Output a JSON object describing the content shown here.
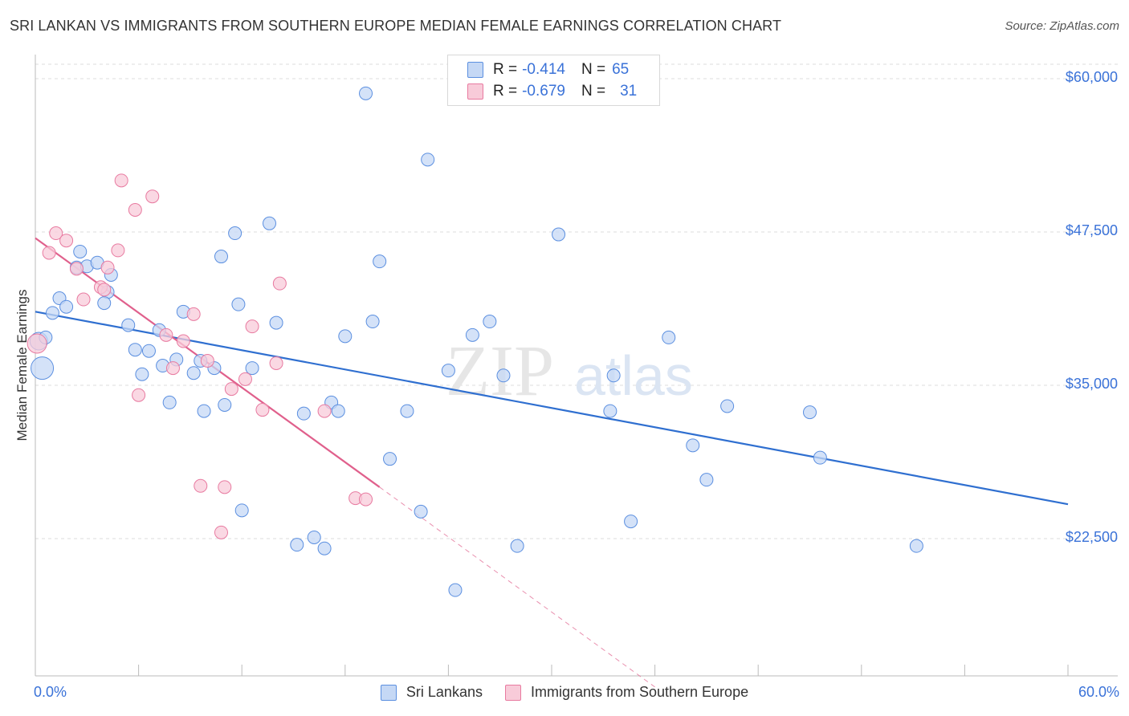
{
  "header": {
    "title": "SRI LANKAN VS IMMIGRANTS FROM SOUTHERN EUROPE MEDIAN FEMALE EARNINGS CORRELATION CHART",
    "source": "Source: ZipAtlas.com"
  },
  "legend_top": {
    "rows": [
      {
        "r_label": "R =",
        "r_value": "-0.414",
        "n_label": "N =",
        "n_value": "65"
      },
      {
        "r_label": "R =",
        "r_value": "-0.679",
        "n_label": "N =",
        "n_value": "31"
      }
    ]
  },
  "legend_bottom": {
    "items": [
      "Sri Lankans",
      "Immigrants from Southern Europe"
    ]
  },
  "axis": {
    "ylabel": "Median Female Earnings",
    "x_min_label": "0.0%",
    "x_max_label": "60.0%",
    "y_ticks": [
      "$60,000",
      "$47,500",
      "$35,000",
      "$22,500"
    ]
  },
  "colors": {
    "blue": "#5b8fe0",
    "blue_fill": "#c5d8f5",
    "blue_line": "#2f6fd0",
    "pink": "#e87aa0",
    "pink_fill": "#f8cbd9",
    "pink_line": "#e0608c",
    "tick_text": "#3a72d8",
    "grid": "#dddddd"
  },
  "chart_data": {
    "type": "scatter",
    "xlim": [
      0,
      60
    ],
    "ylim": [
      10000,
      62000
    ],
    "y_ticks": [
      60000,
      47500,
      35000,
      22500
    ],
    "grid": "horizontal dashed",
    "series": [
      {
        "name": "Sri Lankans",
        "color": "#5b8fe0",
        "points": [
          [
            0.2,
            38600
          ],
          [
            0.4,
            36400
          ],
          [
            1.0,
            40900
          ],
          [
            1.4,
            42100
          ],
          [
            1.8,
            41400
          ],
          [
            2.6,
            45900
          ],
          [
            2.4,
            44600
          ],
          [
            3.0,
            44700
          ],
          [
            3.6,
            45000
          ],
          [
            4.2,
            42600
          ],
          [
            4.4,
            44000
          ],
          [
            4.0,
            41700
          ],
          [
            5.4,
            39900
          ],
          [
            5.8,
            37900
          ],
          [
            6.2,
            35900
          ],
          [
            6.6,
            37800
          ],
          [
            7.2,
            39500
          ],
          [
            7.4,
            36600
          ],
          [
            7.8,
            33600
          ],
          [
            8.2,
            37100
          ],
          [
            8.6,
            41000
          ],
          [
            9.2,
            36000
          ],
          [
            9.6,
            37000
          ],
          [
            9.8,
            32900
          ],
          [
            10.4,
            36400
          ],
          [
            10.8,
            45500
          ],
          [
            11.0,
            33400
          ],
          [
            11.6,
            47400
          ],
          [
            11.8,
            41600
          ],
          [
            12.0,
            24800
          ],
          [
            12.6,
            36400
          ],
          [
            13.6,
            48200
          ],
          [
            14.0,
            40100
          ],
          [
            15.2,
            22000
          ],
          [
            15.6,
            32700
          ],
          [
            16.2,
            22600
          ],
          [
            16.8,
            21700
          ],
          [
            17.2,
            33600
          ],
          [
            17.6,
            32900
          ],
          [
            18.0,
            39000
          ],
          [
            19.2,
            58800
          ],
          [
            19.6,
            40200
          ],
          [
            20.0,
            45100
          ],
          [
            20.6,
            29000
          ],
          [
            21.6,
            32900
          ],
          [
            22.4,
            24700
          ],
          [
            22.8,
            53400
          ],
          [
            24.0,
            36200
          ],
          [
            24.4,
            18300
          ],
          [
            25.4,
            39100
          ],
          [
            26.4,
            40200
          ],
          [
            27.2,
            35800
          ],
          [
            28.0,
            21900
          ],
          [
            30.4,
            47300
          ],
          [
            33.6,
            35800
          ],
          [
            33.4,
            32900
          ],
          [
            34.6,
            23900
          ],
          [
            36.8,
            38900
          ],
          [
            38.2,
            30100
          ],
          [
            39.0,
            27300
          ],
          [
            40.2,
            33300
          ],
          [
            45.0,
            32800
          ],
          [
            45.6,
            29100
          ],
          [
            51.2,
            21900
          ],
          [
            0.6,
            38900
          ]
        ]
      },
      {
        "name": "Immigrants from Southern Europe",
        "color": "#e87aa0",
        "points": [
          [
            0.1,
            38400
          ],
          [
            0.8,
            45800
          ],
          [
            1.2,
            47400
          ],
          [
            1.8,
            46800
          ],
          [
            2.4,
            44500
          ],
          [
            2.8,
            42000
          ],
          [
            3.8,
            43000
          ],
          [
            4.2,
            44600
          ],
          [
            4.8,
            46000
          ],
          [
            5.0,
            51700
          ],
          [
            5.8,
            49300
          ],
          [
            6.0,
            34200
          ],
          [
            6.8,
            50400
          ],
          [
            7.6,
            39100
          ],
          [
            8.0,
            36400
          ],
          [
            8.6,
            38600
          ],
          [
            9.2,
            40800
          ],
          [
            9.6,
            26800
          ],
          [
            10.0,
            37000
          ],
          [
            10.8,
            23000
          ],
          [
            11.0,
            26700
          ],
          [
            11.4,
            34700
          ],
          [
            12.2,
            35500
          ],
          [
            12.6,
            39800
          ],
          [
            13.2,
            33000
          ],
          [
            14.0,
            36800
          ],
          [
            14.2,
            43300
          ],
          [
            16.8,
            32900
          ],
          [
            18.6,
            25800
          ],
          [
            19.2,
            25700
          ],
          [
            4.0,
            42800
          ]
        ]
      }
    ],
    "trendlines": [
      {
        "series": "Sri Lankans",
        "x": [
          0,
          60
        ],
        "y": [
          41000,
          25300
        ],
        "style": "solid"
      },
      {
        "series": "Immigrants from Southern Europe",
        "x": [
          0,
          20
        ],
        "y": [
          47000,
          26700
        ],
        "style": "solid"
      },
      {
        "series": "Immigrants from Southern Europe",
        "x": [
          20,
          36
        ],
        "y": [
          26700,
          10400
        ],
        "style": "dashed"
      }
    ]
  }
}
